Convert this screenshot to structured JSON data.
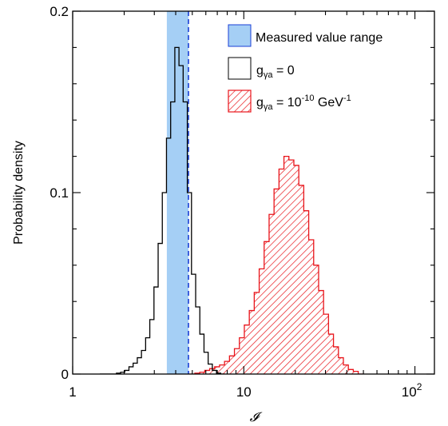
{
  "chart_data": {
    "type": "histogram",
    "xscale": "log",
    "xlim": [
      1,
      130
    ],
    "ylim": [
      0,
      0.2
    ],
    "xlabel": "𝓘",
    "ylabel": "Probability density",
    "x_ticks": [
      {
        "value": 1,
        "base": "1",
        "exp": ""
      },
      {
        "value": 10,
        "base": "10",
        "exp": ""
      },
      {
        "value": 100,
        "base": "10",
        "exp": "2"
      }
    ],
    "y_ticks": [
      {
        "value": 0,
        "label": "0"
      },
      {
        "value": 0.1,
        "label": "0.1"
      },
      {
        "value": 0.2,
        "label": "0.2"
      }
    ],
    "measured_range": {
      "min": 3.55,
      "max": 4.75
    },
    "measured_line": 4.75,
    "legend": {
      "position": "top-right",
      "measured": "Measured value range",
      "null_prefix": "g",
      "null_sub": "γa",
      "null_rest": " = 0",
      "alp_prefix": "g",
      "alp_sub": "γa",
      "alp_mid": " =  10",
      "alp_exp1": "-10",
      "alp_unit": " GeV",
      "alp_exp2": "-1"
    },
    "series": [
      {
        "key": "null",
        "style": "outline",
        "color": "#000000",
        "bin_start": 1.44,
        "bin_factor": 1.0577,
        "values": [
          0.0,
          0.0,
          0.0,
          0.0,
          0.0005,
          0.001,
          0.002,
          0.004,
          0.006,
          0.009,
          0.013,
          0.02,
          0.03,
          0.048,
          0.072,
          0.1,
          0.13,
          0.15,
          0.18,
          0.17,
          0.15,
          0.1,
          0.055,
          0.037,
          0.022,
          0.012,
          0.0055,
          0.002,
          0.0005,
          0.0
        ]
      },
      {
        "key": "alp",
        "style": "hatched",
        "color": "#e8151b",
        "bin_start": 4.84,
        "bin_factor": 1.0689,
        "values": [
          0.0,
          0.0005,
          0.001,
          0.002,
          0.003,
          0.004,
          0.005,
          0.007,
          0.01,
          0.014,
          0.02,
          0.027,
          0.035,
          0.045,
          0.058,
          0.073,
          0.088,
          0.102,
          0.113,
          0.12,
          0.118,
          0.115,
          0.104,
          0.09,
          0.074,
          0.06,
          0.046,
          0.033,
          0.022,
          0.015,
          0.009,
          0.005,
          0.0025,
          0.0015,
          0.0
        ]
      }
    ]
  },
  "colors": {
    "band": "#a5cff5",
    "band_line": "#1a3fd6",
    "alp": "#e8151b",
    "null": "#000000"
  }
}
